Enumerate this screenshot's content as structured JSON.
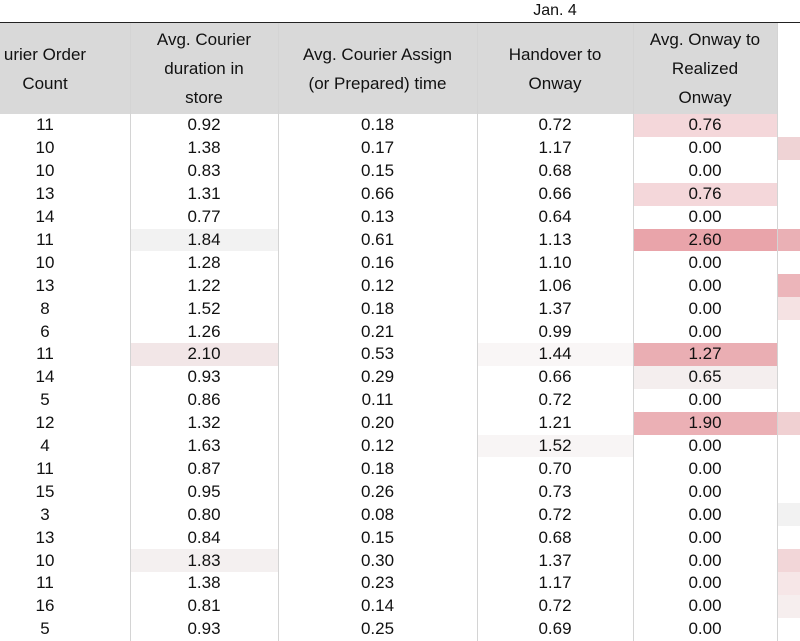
{
  "group_label": "Jan. 4",
  "table": {
    "headers": [
      [
        "urier Order",
        "Count"
      ],
      [
        "Avg. Courier",
        "duration in",
        "store"
      ],
      [
        "Avg. Courier Assign",
        "(or Prepared) time"
      ],
      [
        "Handover to",
        "Onway"
      ],
      [
        "Avg. Onway to",
        "Realized",
        "Onway"
      ]
    ],
    "rows": [
      [
        "11",
        "0.92",
        "0.18",
        "0.72",
        "0.76"
      ],
      [
        "10",
        "1.38",
        "0.17",
        "1.17",
        "0.00"
      ],
      [
        "10",
        "0.83",
        "0.15",
        "0.68",
        "0.00"
      ],
      [
        "13",
        "1.31",
        "0.66",
        "0.66",
        "0.76"
      ],
      [
        "14",
        "0.77",
        "0.13",
        "0.64",
        "0.00"
      ],
      [
        "11",
        "1.84",
        "0.61",
        "1.13",
        "2.60"
      ],
      [
        "10",
        "1.28",
        "0.16",
        "1.10",
        "0.00"
      ],
      [
        "13",
        "1.22",
        "0.12",
        "1.06",
        "0.00"
      ],
      [
        "8",
        "1.52",
        "0.18",
        "1.37",
        "0.00"
      ],
      [
        "6",
        "1.26",
        "0.21",
        "0.99",
        "0.00"
      ],
      [
        "11",
        "2.10",
        "0.53",
        "1.44",
        "1.27"
      ],
      [
        "14",
        "0.93",
        "0.29",
        "0.66",
        "0.65"
      ],
      [
        "5",
        "0.86",
        "0.11",
        "0.72",
        "0.00"
      ],
      [
        "12",
        "1.32",
        "0.20",
        "1.21",
        "1.90"
      ],
      [
        "4",
        "1.63",
        "0.12",
        "1.52",
        "0.00"
      ],
      [
        "11",
        "0.87",
        "0.18",
        "0.70",
        "0.00"
      ],
      [
        "15",
        "0.95",
        "0.26",
        "0.73",
        "0.00"
      ],
      [
        "3",
        "0.80",
        "0.08",
        "0.72",
        "0.00"
      ],
      [
        "13",
        "0.84",
        "0.15",
        "0.68",
        "0.00"
      ],
      [
        "10",
        "1.83",
        "0.30",
        "1.37",
        "0.00"
      ],
      [
        "11",
        "1.38",
        "0.23",
        "1.17",
        "0.00"
      ],
      [
        "16",
        "0.81",
        "0.14",
        "0.72",
        "0.00"
      ],
      [
        "5",
        "0.93",
        "0.25",
        "0.69",
        "0.00"
      ]
    ]
  }
}
